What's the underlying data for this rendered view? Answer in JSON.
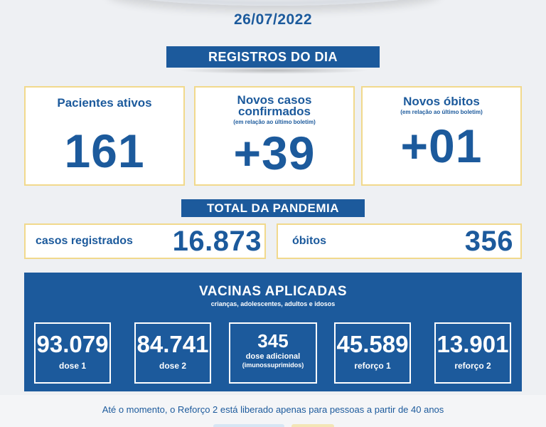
{
  "date": "26/07/2022",
  "registros": {
    "banner": "REGISTROS DO DIA",
    "cards": [
      {
        "title": "Pacientes ativos",
        "subtitle": "",
        "value": "161"
      },
      {
        "title": "Novos casos confirmados",
        "title_line1": "Novos casos",
        "title_line2": "confirmados",
        "subtitle": "(em relação ao último boletim)",
        "value": "+39"
      },
      {
        "title": "Novos óbitos",
        "subtitle": "(em relação ao último boletim)",
        "value": "+01"
      }
    ]
  },
  "total": {
    "banner": "TOTAL DA PANDEMIA",
    "casos_label": "casos registrados",
    "casos_value": "16.873",
    "obitos_label": "óbitos",
    "obitos_value": "356"
  },
  "vacinas": {
    "title": "VACINAS APLICADAS",
    "subtitle": "crianças, adolescentes, adultos e idosos",
    "items": [
      {
        "value": "93.079",
        "label": "dose 1"
      },
      {
        "value": "84.741",
        "label": "dose 2"
      },
      {
        "value": "345",
        "label": "dose adicional",
        "note": "(imunossuprimidos)"
      },
      {
        "value": "45.589",
        "label": "reforço 1"
      },
      {
        "value": "13.901",
        "label": "reforço 2"
      }
    ]
  },
  "footer": {
    "text": "Até o momento, o Reforço 2 está liberado apenas para pessoas a partir de 40 anos"
  },
  "colors": {
    "primary": "#1c5a9c",
    "card_border": "#f1d98c",
    "background": "#eef0f3"
  }
}
